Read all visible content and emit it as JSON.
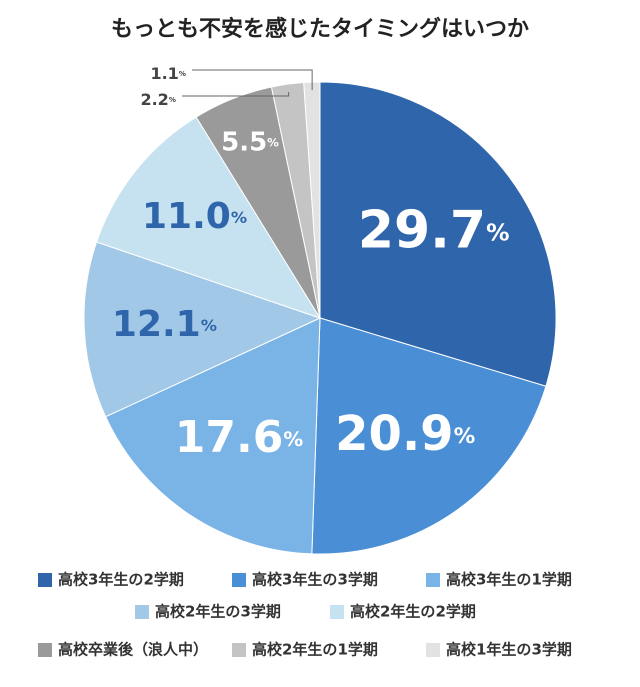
{
  "chart_data": {
    "type": "pie",
    "title": "もっとも不安を感じたタイミングはいつか",
    "categories": [
      "高校3年生の2学期",
      "高校3年生の3学期",
      "高校3年生の1学期",
      "高校2年生の3学期",
      "高校2年生の2学期",
      "高校卒業後（浪人中）",
      "高校2年生の1学期",
      "高校1年生の3学期"
    ],
    "values": [
      29.7,
      20.9,
      17.6,
      12.1,
      11.0,
      5.5,
      2.2,
      1.1
    ],
    "value_labels": [
      "29.7",
      "20.9",
      "17.6",
      "12.1",
      "11.0",
      "5.5",
      "2.2",
      "1.1"
    ],
    "unit": "%",
    "colors": [
      "#2f65aa",
      "#4a8fd6",
      "#7ab3e6",
      "#a2c8e8",
      "#c6e1f0",
      "#9a9a9a",
      "#c4c4c4",
      "#e2e2e2"
    ]
  }
}
